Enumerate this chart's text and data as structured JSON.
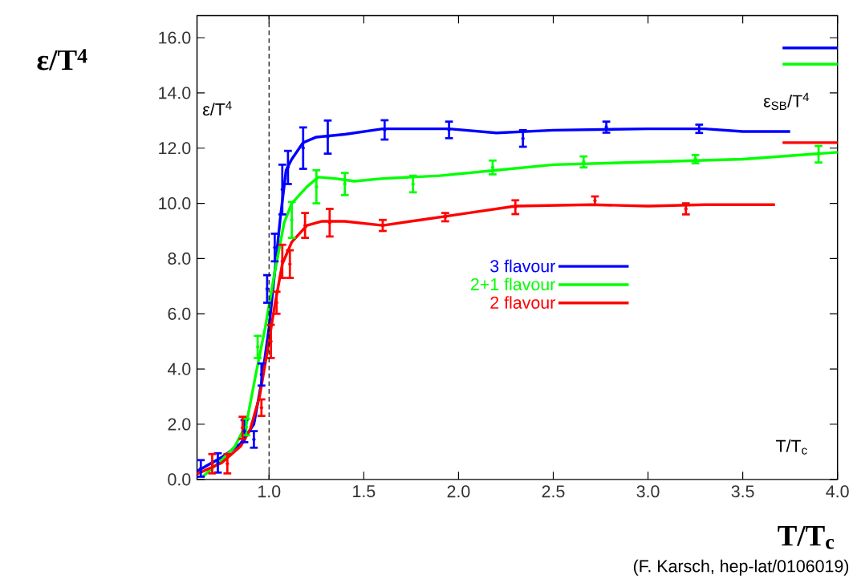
{
  "chart_data": {
    "type": "line",
    "xlabel": "T/T$_{c}$",
    "ylabel": "ε/T$^{4}$",
    "xlim": [
      0.62,
      4.0
    ],
    "ylim": [
      0,
      16.8
    ],
    "xticks": [
      {
        "value": 1.0,
        "label": "1.0"
      },
      1.5,
      {
        "value": 2.0,
        "label": "2.0"
      },
      2.5,
      {
        "value": 3.0,
        "label": "3.0"
      },
      3.5,
      {
        "value": 4.0,
        "label": "4.0"
      }
    ],
    "yticks": [
      {
        "value": 0,
        "label": "0.0"
      },
      {
        "value": 2,
        "label": "2.0"
      },
      {
        "value": 4,
        "label": "4.0"
      },
      {
        "value": 6,
        "label": "6.0"
      },
      {
        "value": 8,
        "label": "8.0"
      },
      {
        "value": 10,
        "label": "10.0"
      },
      {
        "value": 12,
        "label": "12.0"
      },
      {
        "value": 14,
        "label": "14.0"
      },
      {
        "value": 16,
        "label": "16.0"
      }
    ],
    "legend": "center",
    "marker": "none",
    "ref_lines": [
      {
        "axis": "x",
        "value": 1.0,
        "color": "#000000",
        "line_style": "dashed"
      }
    ],
    "annotations": [
      "ε/T$^{4}$",
      "ε$_{SB}$/T$^{4}$",
      "T/T$_{c}$",
      "(F. Karsch, hep-lat/0106019)"
    ],
    "series": [
      {
        "name": "3 flavour",
        "color": "#0000ff",
        "x": [
          0.62,
          0.75,
          0.85,
          0.92,
          0.96,
          1.0,
          1.03,
          1.06,
          1.09,
          1.12,
          1.18,
          1.25,
          1.4,
          1.6,
          1.95,
          2.2,
          2.5,
          3.0,
          3.3,
          3.5,
          3.75
        ],
        "values": [
          0.3,
          0.8,
          1.3,
          2.0,
          3.5,
          5.5,
          7.5,
          9.5,
          11.2,
          11.6,
          12.2,
          12.4,
          12.5,
          12.7,
          12.7,
          12.55,
          12.65,
          12.7,
          12.7,
          12.6,
          12.6
        ]
      },
      {
        "name": "2+1 flavour",
        "color": "#00ff00",
        "x": [
          0.65,
          0.75,
          0.82,
          0.88,
          0.93,
          0.98,
          1.03,
          1.08,
          1.12,
          1.2,
          1.26,
          1.35,
          1.45,
          1.6,
          1.9,
          2.2,
          2.5,
          3.0,
          3.5,
          4.0
        ],
        "values": [
          0.1,
          0.7,
          1.2,
          2.0,
          3.8,
          5.5,
          7.5,
          9.3,
          10.0,
          10.6,
          10.95,
          10.9,
          10.8,
          10.9,
          11.0,
          11.2,
          11.4,
          11.5,
          11.6,
          11.85
        ]
      },
      {
        "name": "2 flavour",
        "color": "#ff0000",
        "x": [
          0.62,
          0.75,
          0.85,
          0.9,
          0.95,
          0.99,
          1.03,
          1.07,
          1.12,
          1.2,
          1.28,
          1.4,
          1.6,
          1.8,
          2.0,
          2.3,
          2.7,
          3.0,
          3.3,
          3.67
        ],
        "values": [
          0.2,
          0.6,
          1.2,
          1.8,
          3.0,
          4.6,
          6.3,
          7.8,
          8.6,
          9.2,
          9.35,
          9.35,
          9.2,
          9.4,
          9.6,
          9.9,
          9.95,
          9.9,
          9.95,
          9.95
        ]
      },
      {
        "color": "#0000ff",
        "type": "scatter",
        "x": [
          0.64,
          0.73,
          0.87,
          0.92,
          0.96,
          0.99,
          1.03,
          1.07,
          1.1,
          1.18,
          1.31,
          1.61,
          1.95,
          2.34,
          2.78,
          3.27
        ],
        "values": [
          0.4,
          0.6,
          1.75,
          1.45,
          3.8,
          6.9,
          8.4,
          10.5,
          11.3,
          12.0,
          12.4,
          12.66,
          12.66,
          12.35,
          12.76,
          12.7
        ],
        "errors": [
          0.3,
          0.35,
          0.4,
          0.3,
          0.4,
          0.5,
          0.5,
          0.9,
          0.6,
          0.75,
          0.6,
          0.35,
          0.3,
          0.3,
          0.2,
          0.15
        ]
      },
      {
        "color": "#00ff00",
        "type": "scatter",
        "x": [
          0.88,
          0.94,
          1.12,
          1.25,
          1.4,
          1.76,
          2.18,
          2.66,
          3.25,
          3.9
        ],
        "values": [
          1.9,
          4.8,
          9.4,
          10.6,
          10.7,
          10.7,
          11.3,
          11.5,
          11.6,
          11.78
        ],
        "errors": [
          0.3,
          0.4,
          0.65,
          0.6,
          0.4,
          0.3,
          0.25,
          0.2,
          0.15,
          0.3
        ]
      },
      {
        "color": "#ff0000",
        "type": "scatter",
        "x": [
          0.7,
          0.78,
          0.86,
          0.96,
          1.01,
          1.04,
          1.07,
          1.11,
          1.19,
          1.32,
          1.6,
          1.93,
          2.3,
          2.72,
          3.2
        ],
        "values": [
          0.57,
          0.57,
          1.87,
          2.6,
          5.0,
          6.4,
          7.9,
          7.8,
          9.2,
          9.3,
          9.2,
          9.5,
          9.86,
          10.1,
          9.8
        ],
        "errors": [
          0.35,
          0.35,
          0.4,
          0.3,
          0.6,
          0.4,
          0.6,
          0.5,
          0.45,
          0.5,
          0.2,
          0.15,
          0.25,
          0.15,
          0.2
        ]
      },
      {
        "color": "#0000ff",
        "x": [
          3.71,
          4.0
        ],
        "values": [
          15.63,
          15.63
        ]
      },
      {
        "color": "#00ff00",
        "x": [
          3.71,
          4.0
        ],
        "values": [
          15.04,
          15.04
        ]
      },
      {
        "color": "#ff0000",
        "x": [
          3.71,
          4.0
        ],
        "values": [
          12.2,
          12.2
        ]
      }
    ]
  }
}
